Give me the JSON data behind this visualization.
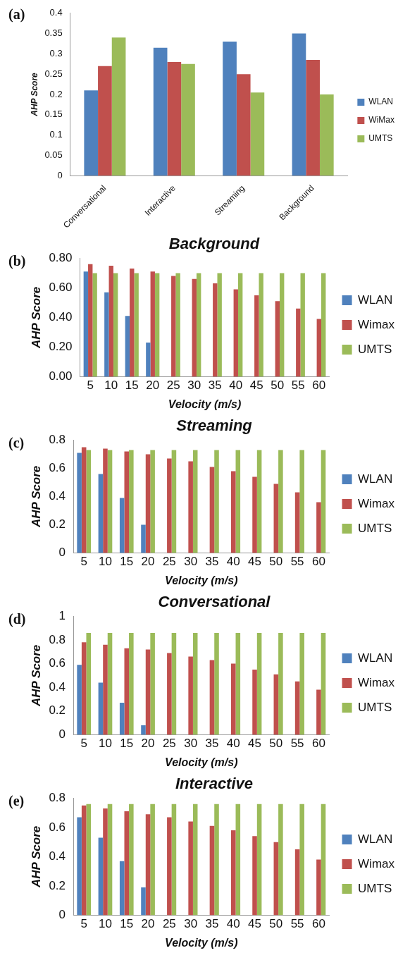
{
  "chart_data": [
    {
      "type": "bar",
      "annotations": [
        "(a)"
      ],
      "ylabel": "AHP Score",
      "categories": [
        "Conversational",
        "Interactive",
        "Streaming",
        "Background"
      ],
      "series": [
        {
          "name": "WLAN",
          "color": "#4f81bd",
          "values": [
            0.21,
            0.315,
            0.33,
            0.35
          ]
        },
        {
          "name": "WiMax",
          "color": "#c0504d",
          "values": [
            0.27,
            0.28,
            0.25,
            0.285
          ]
        },
        {
          "name": "UMTS",
          "color": "#9bbb59",
          "values": [
            0.34,
            0.275,
            0.205,
            0.2
          ]
        }
      ],
      "ylim": [
        0,
        0.4
      ],
      "yticks": [
        0,
        0.05,
        0.1,
        0.15,
        0.2,
        0.25,
        0.3,
        0.35,
        0.4
      ],
      "legend": "right"
    },
    {
      "type": "bar",
      "title": "Background",
      "annotations": [
        "(b)"
      ],
      "xlabel": "Velocity (m/s)",
      "ylabel": "AHP Score",
      "categories": [
        "5",
        "10",
        "15",
        "20",
        "25",
        "30",
        "35",
        "40",
        "45",
        "50",
        "55",
        "60"
      ],
      "series": [
        {
          "name": "WLAN",
          "color": "#4f81bd",
          "values": [
            0.71,
            0.57,
            0.41,
            0.23,
            null,
            null,
            null,
            null,
            null,
            null,
            null,
            null
          ]
        },
        {
          "name": "Wimax",
          "color": "#c0504d",
          "values": [
            0.76,
            0.75,
            0.73,
            0.71,
            0.68,
            0.66,
            0.63,
            0.59,
            0.55,
            0.51,
            0.46,
            0.39
          ]
        },
        {
          "name": "UMTS",
          "color": "#9bbb59",
          "values": [
            0.7,
            0.7,
            0.7,
            0.7,
            0.7,
            0.7,
            0.7,
            0.7,
            0.7,
            0.7,
            0.7,
            0.7
          ]
        }
      ],
      "ylim": [
        0,
        0.8
      ],
      "yticks": [
        {
          "value": 0,
          "label": "0.00"
        },
        {
          "value": 0.2,
          "label": "0.20"
        },
        {
          "value": 0.4,
          "label": "0.40"
        },
        {
          "value": 0.6,
          "label": "0.60"
        },
        {
          "value": 0.8,
          "label": "0.80"
        }
      ],
      "legend": "right"
    },
    {
      "type": "bar",
      "title": "Streaming",
      "annotations": [
        "(c)"
      ],
      "xlabel": "Velocity (m/s)",
      "ylabel": "AHP Score",
      "categories": [
        "5",
        "10",
        "15",
        "20",
        "25",
        "30",
        "35",
        "40",
        "45",
        "50",
        "55",
        "60"
      ],
      "series": [
        {
          "name": "WLAN",
          "color": "#4f81bd",
          "values": [
            0.71,
            0.56,
            0.39,
            0.2,
            null,
            null,
            null,
            null,
            null,
            null,
            null,
            null
          ]
        },
        {
          "name": "Wimax",
          "color": "#c0504d",
          "values": [
            0.75,
            0.74,
            0.72,
            0.7,
            0.67,
            0.65,
            0.61,
            0.58,
            0.54,
            0.49,
            0.43,
            0.36
          ]
        },
        {
          "name": "UMTS",
          "color": "#9bbb59",
          "values": [
            0.73,
            0.73,
            0.73,
            0.73,
            0.73,
            0.73,
            0.73,
            0.73,
            0.73,
            0.73,
            0.73,
            0.73
          ]
        }
      ],
      "ylim": [
        0,
        0.8
      ],
      "yticks": [
        0,
        0.2,
        0.4,
        0.6,
        0.8
      ],
      "legend": "right"
    },
    {
      "type": "bar",
      "title": "Conversational",
      "annotations": [
        "(d)"
      ],
      "xlabel": "Velocity (m/s)",
      "ylabel": "AHP Score",
      "categories": [
        "5",
        "10",
        "15",
        "20",
        "25",
        "30",
        "35",
        "40",
        "45",
        "50",
        "55",
        "60"
      ],
      "series": [
        {
          "name": "WLAN",
          "color": "#4f81bd",
          "values": [
            0.59,
            0.44,
            0.27,
            0.08,
            null,
            null,
            null,
            null,
            null,
            null,
            null,
            null
          ]
        },
        {
          "name": "Wimax",
          "color": "#c0504d",
          "values": [
            0.78,
            0.76,
            0.73,
            0.72,
            0.69,
            0.66,
            0.63,
            0.6,
            0.55,
            0.51,
            0.45,
            0.38
          ]
        },
        {
          "name": "UMTS",
          "color": "#9bbb59",
          "values": [
            0.86,
            0.86,
            0.86,
            0.86,
            0.86,
            0.86,
            0.86,
            0.86,
            0.86,
            0.86,
            0.86,
            0.86
          ]
        }
      ],
      "ylim": [
        0,
        1
      ],
      "yticks": [
        0,
        0.2,
        0.4,
        0.6,
        0.8,
        1
      ],
      "legend": "right"
    },
    {
      "type": "bar",
      "title": "Interactive",
      "annotations": [
        "(e)"
      ],
      "xlabel": "Velocity (m/s)",
      "ylabel": "AHP Score",
      "categories": [
        "5",
        "10",
        "15",
        "20",
        "25",
        "30",
        "35",
        "40",
        "45",
        "50",
        "55",
        "60"
      ],
      "series": [
        {
          "name": "WLAN",
          "color": "#4f81bd",
          "values": [
            0.67,
            0.53,
            0.37,
            0.19,
            null,
            null,
            null,
            null,
            null,
            null,
            null,
            null
          ]
        },
        {
          "name": "Wimax",
          "color": "#c0504d",
          "values": [
            0.75,
            0.73,
            0.71,
            0.69,
            0.67,
            0.64,
            0.61,
            0.58,
            0.54,
            0.5,
            0.45,
            0.38
          ]
        },
        {
          "name": "UMTS",
          "color": "#9bbb59",
          "values": [
            0.76,
            0.76,
            0.76,
            0.76,
            0.76,
            0.76,
            0.76,
            0.76,
            0.76,
            0.76,
            0.76,
            0.76
          ]
        }
      ],
      "ylim": [
        0,
        0.8
      ],
      "yticks": [
        0,
        0.2,
        0.4,
        0.6,
        0.8
      ],
      "legend": "right"
    }
  ]
}
